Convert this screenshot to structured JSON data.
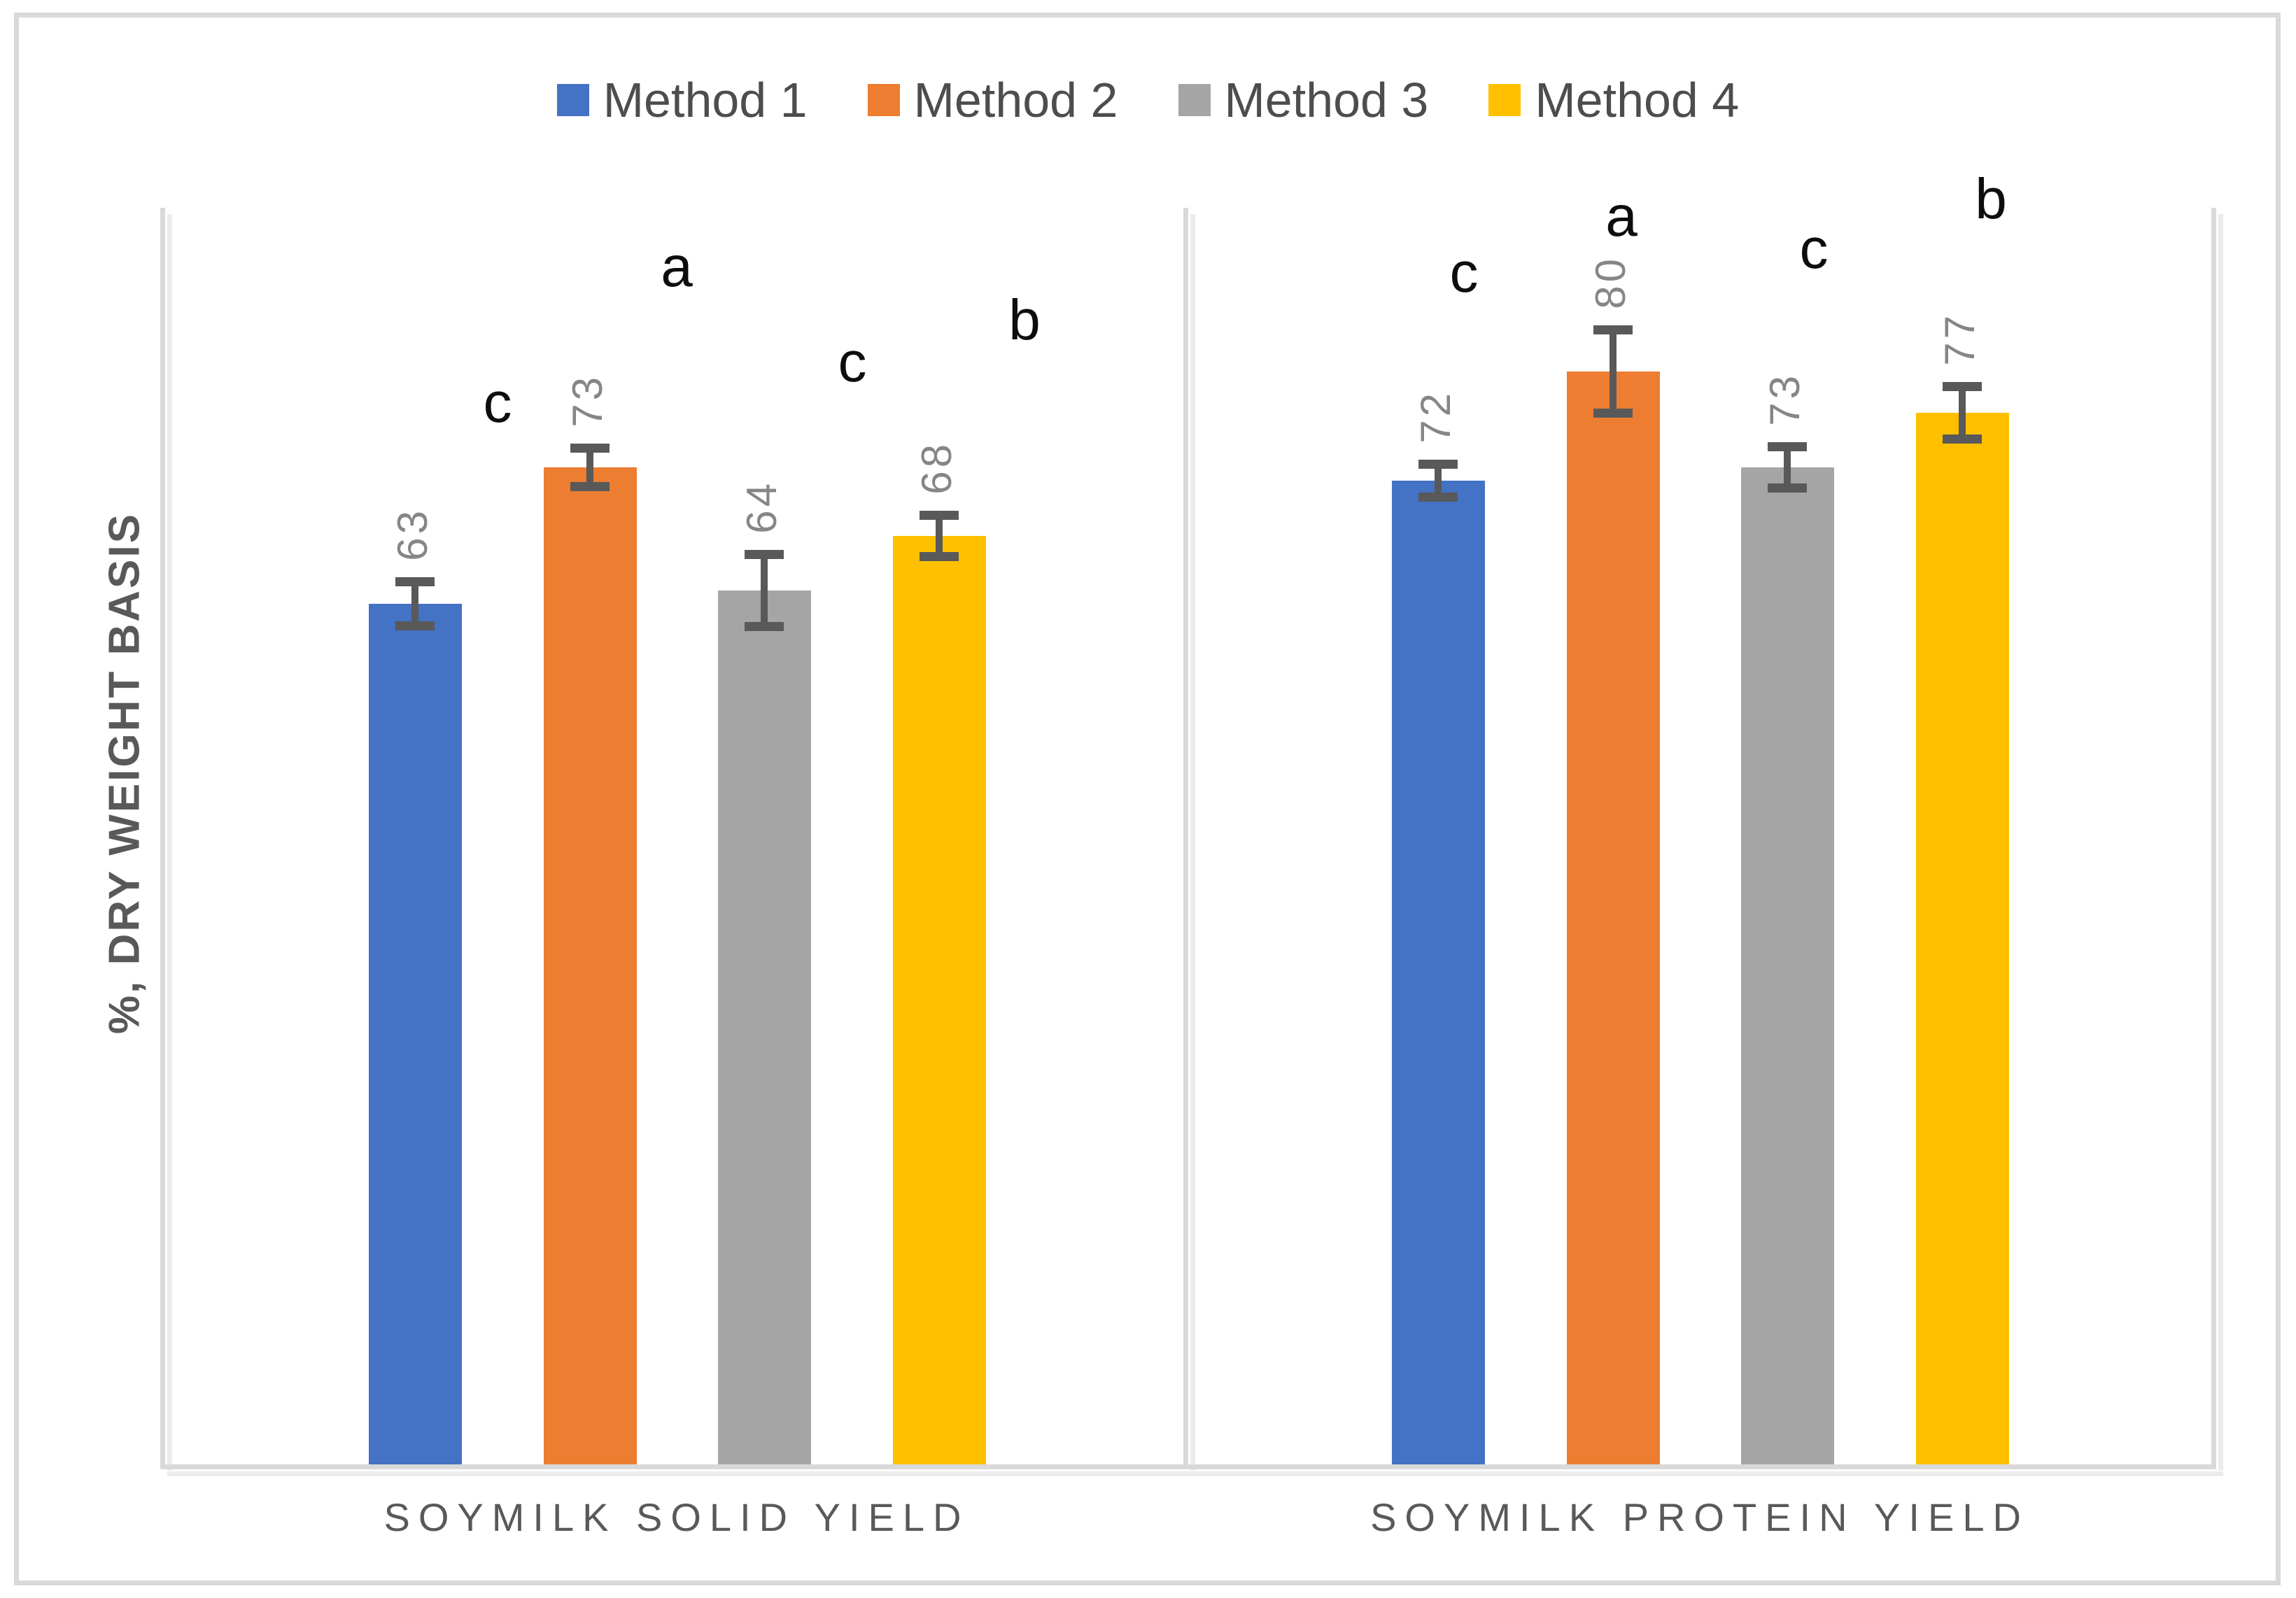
{
  "figure": {
    "background": "#ffffff",
    "border_color": "#d9d9d9",
    "axis_line_color": "#d9d9d9",
    "error_bar_color": "#595959",
    "data_label_color": "#868686",
    "category_label_color": "#595959",
    "significance_letter_color": "#0d0d0d"
  },
  "legend": {
    "items": [
      {
        "label": "Method 1",
        "color": "#4472C4"
      },
      {
        "label": "Method 2",
        "color": "#ED7D31"
      },
      {
        "label": "Method 3",
        "color": "#A5A5A5"
      },
      {
        "label": "Method 4",
        "color": "#FFC000"
      }
    ]
  },
  "y_axis": {
    "title": "%, DRY WEIGHT BASIS"
  },
  "chart_data": {
    "type": "bar",
    "subtype": "grouped-vertical-with-error-bars",
    "categories": [
      "SOYMILK SOLID YIELD",
      "SOYMILK PROTEIN YIELD"
    ],
    "series": [
      {
        "name": "Method 1",
        "color": "#4472C4",
        "values": [
          63,
          72
        ],
        "errors": [
          1.6,
          1.2
        ],
        "sig_letters": [
          "c",
          "c"
        ]
      },
      {
        "name": "Method 2",
        "color": "#ED7D31",
        "values": [
          73,
          80
        ],
        "errors": [
          1.4,
          3.0
        ],
        "sig_letters": [
          "a",
          "a"
        ]
      },
      {
        "name": "Method 3",
        "color": "#A5A5A5",
        "values": [
          64,
          73
        ],
        "errors": [
          2.6,
          1.5
        ],
        "sig_letters": [
          "c",
          "c"
        ]
      },
      {
        "name": "Method 4",
        "color": "#FFC000",
        "values": [
          68,
          77
        ],
        "errors": [
          1.5,
          1.9
        ],
        "sig_letters": [
          "b",
          "b"
        ]
      }
    ],
    "ylabel": "%, DRY WEIGHT BASIS",
    "ylim": [
      0,
      92
    ],
    "y_tick_labels_shown": false,
    "gridlines": false,
    "data_labels": true,
    "data_label_orientation": "rotated-90",
    "error_bars": true,
    "legend_position": "top"
  }
}
